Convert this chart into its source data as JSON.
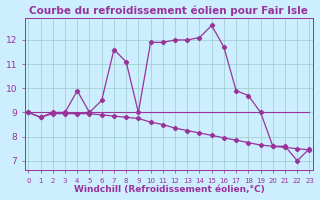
{
  "title": "Courbe du refroidissement éolien pour Fair Isle",
  "xlabel": "Windchill (Refroidissement éolien,°C)",
  "background_color": "#cceeff",
  "line_color": "#993399",
  "grid_color": "#99cccc",
  "x_hours": [
    0,
    1,
    2,
    3,
    4,
    5,
    6,
    7,
    8,
    9,
    10,
    11,
    12,
    13,
    14,
    15,
    16,
    17,
    18,
    19,
    20,
    21,
    22,
    23
  ],
  "temp_line": [
    9.0,
    8.8,
    9.0,
    9.0,
    9.9,
    9.0,
    9.5,
    11.6,
    11.1,
    9.0,
    11.9,
    11.9,
    12.0,
    12.0,
    12.1,
    12.6,
    11.7,
    9.9,
    9.7,
    9.0,
    7.6,
    7.6,
    7.0,
    7.5
  ],
  "windchill_line": [
    9.0,
    8.8,
    8.95,
    8.95,
    8.95,
    8.95,
    8.9,
    8.85,
    8.8,
    8.75,
    8.6,
    8.5,
    8.35,
    8.25,
    8.15,
    8.05,
    7.95,
    7.85,
    7.75,
    7.65,
    7.6,
    7.55,
    7.5,
    7.45
  ],
  "flat_line": [
    9.0,
    9.0,
    9.0,
    9.0,
    9.0,
    9.0,
    9.0,
    9.0,
    9.0,
    9.0,
    9.0,
    9.0,
    9.0,
    9.0,
    9.0,
    9.0,
    9.0,
    9.0,
    9.0,
    9.0,
    9.0,
    9.0,
    9.0,
    9.0
  ],
  "ylim": [
    6.6,
    12.9
  ],
  "yticks": [
    7,
    8,
    9,
    10,
    11,
    12
  ],
  "xtick_fontsize": 5.0,
  "ytick_fontsize": 6.5,
  "xlabel_fontsize": 6.5,
  "title_fontsize": 7.5
}
